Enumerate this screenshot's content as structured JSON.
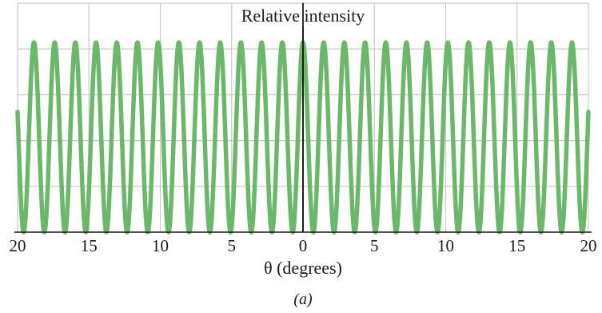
{
  "chart_data": {
    "type": "line",
    "title": "Relative intensity",
    "xlabel": "θ (degrees)",
    "panel_label": "(a)",
    "xlim": [
      -20,
      20
    ],
    "ylim": [
      0,
      1
    ],
    "x_tick_values": [
      -20,
      -15,
      -10,
      -5,
      0,
      5,
      10,
      15,
      20
    ],
    "x_tick_labels": [
      "20",
      "15",
      "10",
      "5",
      "0",
      "5",
      "10",
      "15",
      "20"
    ],
    "grid": true,
    "y_gridline_count": 6,
    "series": [
      {
        "function": "cos^2(pi * theta / 1.45)",
        "fringe_spacing_deg": 1.45,
        "central_max_theta_deg": 0,
        "peak_value": 1,
        "min_value": 0,
        "color": "#6cb86a"
      }
    ],
    "colors": {
      "curve": "#6cb86a",
      "grid": "#c8c8c8",
      "axis": "#1a1a1a"
    }
  }
}
